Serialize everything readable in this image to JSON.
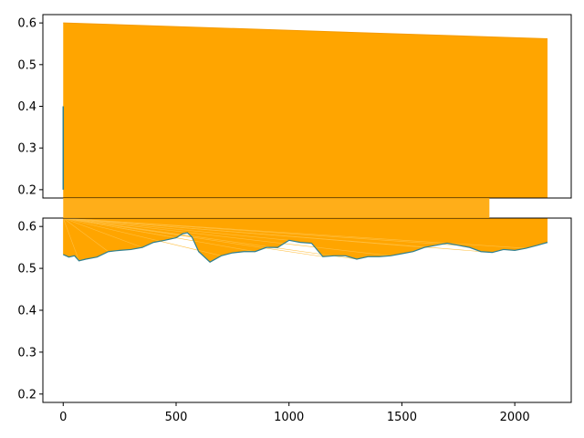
{
  "chart_data": [
    {
      "type": "line",
      "title": "",
      "xlabel": "",
      "ylabel": "",
      "xlim": [
        -90,
        2250
      ],
      "ylim": [
        0.18,
        0.62
      ],
      "yticks": [
        "0.2",
        "0.3",
        "0.4",
        "0.5",
        "0.6"
      ],
      "ytick_values": [
        0.2,
        0.3,
        0.4,
        0.5,
        0.6
      ],
      "xticks_shown": false,
      "grid": false,
      "legend": "none",
      "colors": {
        "line": "#2f7f8f",
        "fill": "#ffa500"
      },
      "series": [
        {
          "x": [
            0,
            0
          ],
          "values": [
            0.2,
            0.4
          ]
        },
        {
          "x": [
            0,
            2145
          ],
          "values": [
            0.6,
            0.562
          ]
        }
      ]
    },
    {
      "type": "line",
      "title": "",
      "xlabel": "",
      "ylabel": "",
      "xlim": [
        -90,
        2250
      ],
      "ylim": [
        0.18,
        0.62
      ],
      "xticks": [
        "0",
        "500",
        "1000",
        "1500",
        "2000"
      ],
      "xtick_values": [
        0,
        500,
        1000,
        1500,
        2000
      ],
      "yticks": [
        "0.2",
        "0.3",
        "0.4",
        "0.5",
        "0.6"
      ],
      "ytick_values": [
        0.2,
        0.3,
        0.4,
        0.5,
        0.6
      ],
      "grid": false,
      "legend": "none",
      "colors": {
        "line": "#2f7f8f",
        "fill": "#ffa500"
      },
      "series": [
        {
          "x": [
            0,
            25,
            50,
            70,
            100,
            150,
            200,
            250,
            300,
            350,
            400,
            450,
            500,
            530,
            550,
            570,
            600,
            650,
            700,
            750,
            800,
            850,
            900,
            950,
            1000,
            1050,
            1100,
            1150,
            1200,
            1250,
            1300,
            1350,
            1400,
            1450,
            1500,
            1550,
            1600,
            1650,
            1700,
            1750,
            1800,
            1850,
            1900,
            1950,
            2000,
            2050,
            2100,
            2145
          ],
          "values": [
            0.533,
            0.527,
            0.53,
            0.518,
            0.522,
            0.527,
            0.54,
            0.543,
            0.545,
            0.55,
            0.562,
            0.567,
            0.573,
            0.583,
            0.585,
            0.575,
            0.54,
            0.515,
            0.53,
            0.537,
            0.54,
            0.54,
            0.55,
            0.55,
            0.567,
            0.562,
            0.56,
            0.528,
            0.53,
            0.53,
            0.522,
            0.528,
            0.528,
            0.53,
            0.535,
            0.54,
            0.55,
            0.555,
            0.56,
            0.555,
            0.55,
            0.54,
            0.538,
            0.545,
            0.543,
            0.548,
            0.555,
            0.562
          ]
        }
      ]
    }
  ]
}
